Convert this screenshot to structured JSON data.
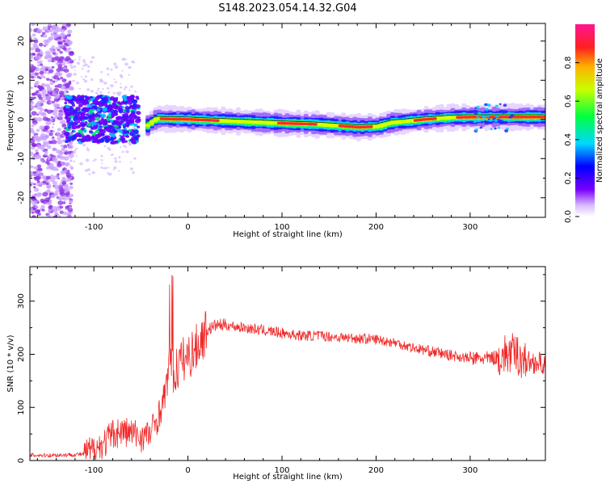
{
  "figure": {
    "title": "S148.2023.054.14.32.G04"
  },
  "chart_data": [
    {
      "type": "heatmap",
      "xlabel": "Height of straight line (km)",
      "ylabel": "Frequency (Hz)",
      "xlim": [
        -168,
        380
      ],
      "ylim": [
        -25,
        24.5
      ],
      "xticks": [
        -100,
        0,
        100,
        200,
        300
      ],
      "yticks": [
        -20,
        -10,
        0,
        10,
        20
      ],
      "colorbar": {
        "label": "Normalized spectral amplitude",
        "range": [
          0,
          1
        ],
        "ticks": [
          0.0,
          0.2,
          0.4,
          0.6,
          0.8
        ],
        "colormap": [
          "#ffffff",
          "#6f00ff",
          "#0000ff",
          "#00e5ff",
          "#00ff3a",
          "#c8ff00",
          "#ffcc00",
          "#ff2020",
          "#ff1493"
        ]
      },
      "ridge": {
        "description": "frequency of maximum amplitude along height",
        "x": [
          -168,
          -120,
          -80,
          -60,
          -50,
          -42,
          -35,
          -20,
          0,
          50,
          100,
          130,
          150,
          180,
          200,
          215,
          230,
          250,
          280,
          300,
          320,
          350,
          380
        ],
        "y": [
          0,
          0,
          -0.5,
          -1.5,
          -2.5,
          -1.0,
          0.2,
          0.1,
          0.0,
          -0.5,
          -1.0,
          -1.2,
          -1.5,
          -2.0,
          -1.8,
          -0.8,
          -0.5,
          0.0,
          0.5,
          0.6,
          0.6,
          0.6,
          0.6
        ]
      }
    },
    {
      "type": "line",
      "xlabel": "Height of straight line (km)",
      "ylabel": "SNR (10 * v/v)",
      "xlim": [
        -168,
        380
      ],
      "ylim": [
        0,
        365
      ],
      "xticks": [
        -100,
        0,
        100,
        200,
        300
      ],
      "yticks": [
        0,
        100,
        200,
        300
      ],
      "color": "#ee1111",
      "series": [
        {
          "x": [
            -168,
            -140,
            -110,
            -100,
            -90,
            -80,
            -70,
            -60,
            -50,
            -40,
            -30,
            -25,
            -20,
            -15,
            -10,
            -5,
            0,
            10,
            20,
            30,
            40,
            60,
            80,
            100,
            120,
            140,
            160,
            180,
            200,
            220,
            240,
            260,
            280,
            300,
            320,
            330,
            340,
            350,
            360,
            370,
            380
          ],
          "y": [
            10,
            10,
            12,
            20,
            30,
            50,
            55,
            52,
            45,
            50,
            90,
            120,
            170,
            160,
            180,
            190,
            195,
            215,
            245,
            255,
            255,
            250,
            245,
            240,
            235,
            235,
            232,
            230,
            228,
            222,
            212,
            205,
            198,
            192,
            192,
            195,
            200,
            200,
            185,
            185,
            180
          ]
        }
      ]
    }
  ]
}
